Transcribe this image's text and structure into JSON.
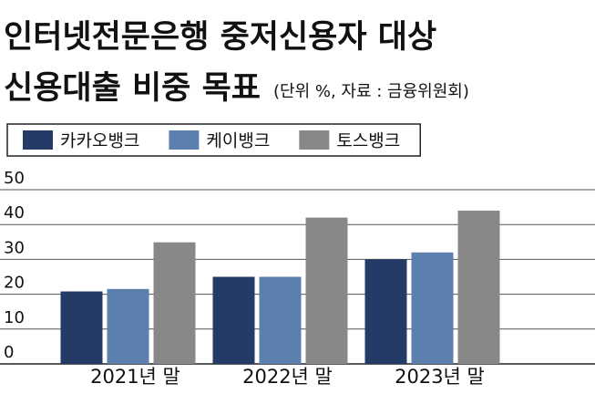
{
  "chart_data": {
    "type": "bar",
    "title": [
      "인터넷전문은행 중저신용자 대상",
      "신용대출 비중 목표"
    ],
    "subtitle": "(단위 %, 자료 : 금융위원회)",
    "categories": [
      "2021년 말",
      "2022년 말",
      "2023년 말"
    ],
    "series": [
      {
        "name": "카카오뱅크",
        "color": "#243a67",
        "values": [
          20.8,
          25,
          30
        ]
      },
      {
        "name": "케이뱅크",
        "color": "#5b80ad",
        "values": [
          21.5,
          25,
          32
        ]
      },
      {
        "name": "토스뱅크",
        "color": "#888888",
        "values": [
          34.9,
          42,
          44
        ]
      }
    ],
    "ylim": [
      0,
      50
    ],
    "yticks": [
      0,
      10,
      20,
      30,
      40,
      50
    ],
    "grid": true
  }
}
